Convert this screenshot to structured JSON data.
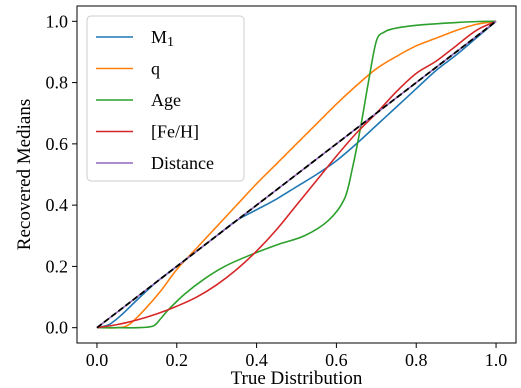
{
  "chart_data": {
    "type": "line",
    "title": "",
    "xlabel": "True Distribution",
    "ylabel": "Recovered Medians",
    "xlim": [
      -0.05,
      1.05
    ],
    "ylim": [
      -0.05,
      1.05
    ],
    "xticks": [
      "0.0",
      "0.2",
      "0.4",
      "0.6",
      "0.8",
      "1.0"
    ],
    "yticks": [
      "0.0",
      "0.2",
      "0.4",
      "0.6",
      "0.8",
      "1.0"
    ],
    "grid": false,
    "legend_position": "top-left",
    "series": [
      {
        "name": "M",
        "name_subscript": "1",
        "color": "#1f77b4",
        "x": [
          0.0,
          0.03,
          0.06,
          0.1,
          0.15,
          0.2,
          0.25,
          0.3,
          0.35,
          0.4,
          0.45,
          0.5,
          0.55,
          0.6,
          0.65,
          0.7,
          0.75,
          0.8,
          0.85,
          0.9,
          0.95,
          1.0
        ],
        "y": [
          0.0,
          0.01,
          0.04,
          0.09,
          0.15,
          0.2,
          0.25,
          0.3,
          0.35,
          0.385,
          0.42,
          0.46,
          0.5,
          0.545,
          0.6,
          0.66,
          0.72,
          0.78,
          0.84,
          0.89,
          0.945,
          1.0
        ]
      },
      {
        "name": "q",
        "color": "#ff7f0e",
        "x": [
          0.0,
          0.05,
          0.08,
          0.12,
          0.16,
          0.2,
          0.25,
          0.3,
          0.35,
          0.4,
          0.45,
          0.5,
          0.55,
          0.6,
          0.65,
          0.7,
          0.75,
          0.8,
          0.85,
          0.9,
          0.95,
          1.0
        ],
        "y": [
          0.0,
          0.0,
          0.01,
          0.06,
          0.12,
          0.19,
          0.26,
          0.33,
          0.4,
          0.47,
          0.535,
          0.6,
          0.665,
          0.73,
          0.79,
          0.845,
          0.885,
          0.92,
          0.945,
          0.97,
          0.99,
          1.0
        ]
      },
      {
        "name": "Age",
        "color": "#2ca02c",
        "x": [
          0.0,
          0.05,
          0.1,
          0.14,
          0.16,
          0.18,
          0.22,
          0.27,
          0.32,
          0.38,
          0.45,
          0.52,
          0.58,
          0.62,
          0.64,
          0.66,
          0.68,
          0.7,
          0.72,
          0.75,
          0.8,
          0.85,
          0.9,
          0.95,
          1.0
        ],
        "y": [
          0.0,
          0.0,
          0.0,
          0.005,
          0.03,
          0.06,
          0.11,
          0.16,
          0.2,
          0.235,
          0.27,
          0.3,
          0.35,
          0.42,
          0.52,
          0.65,
          0.8,
          0.935,
          0.965,
          0.978,
          0.987,
          0.992,
          0.996,
          0.999,
          1.0
        ]
      },
      {
        "name": "[Fe/H]",
        "color": "#d62728",
        "x": [
          0.0,
          0.05,
          0.1,
          0.15,
          0.2,
          0.25,
          0.3,
          0.35,
          0.4,
          0.45,
          0.5,
          0.55,
          0.6,
          0.65,
          0.7,
          0.75,
          0.8,
          0.85,
          0.9,
          0.95,
          1.0
        ],
        "y": [
          0.0,
          0.01,
          0.025,
          0.045,
          0.07,
          0.1,
          0.14,
          0.19,
          0.25,
          0.32,
          0.4,
          0.48,
          0.56,
          0.635,
          0.7,
          0.77,
          0.83,
          0.87,
          0.92,
          0.97,
          1.0
        ]
      },
      {
        "name": "Distance",
        "color": "#9467bd",
        "x": [
          0.0,
          1.0
        ],
        "y": [
          0.0,
          1.0
        ]
      },
      {
        "name": "",
        "color": "#000000",
        "dashed": true,
        "x": [
          0.0,
          1.0
        ],
        "y": [
          0.0,
          1.0
        ]
      }
    ]
  }
}
